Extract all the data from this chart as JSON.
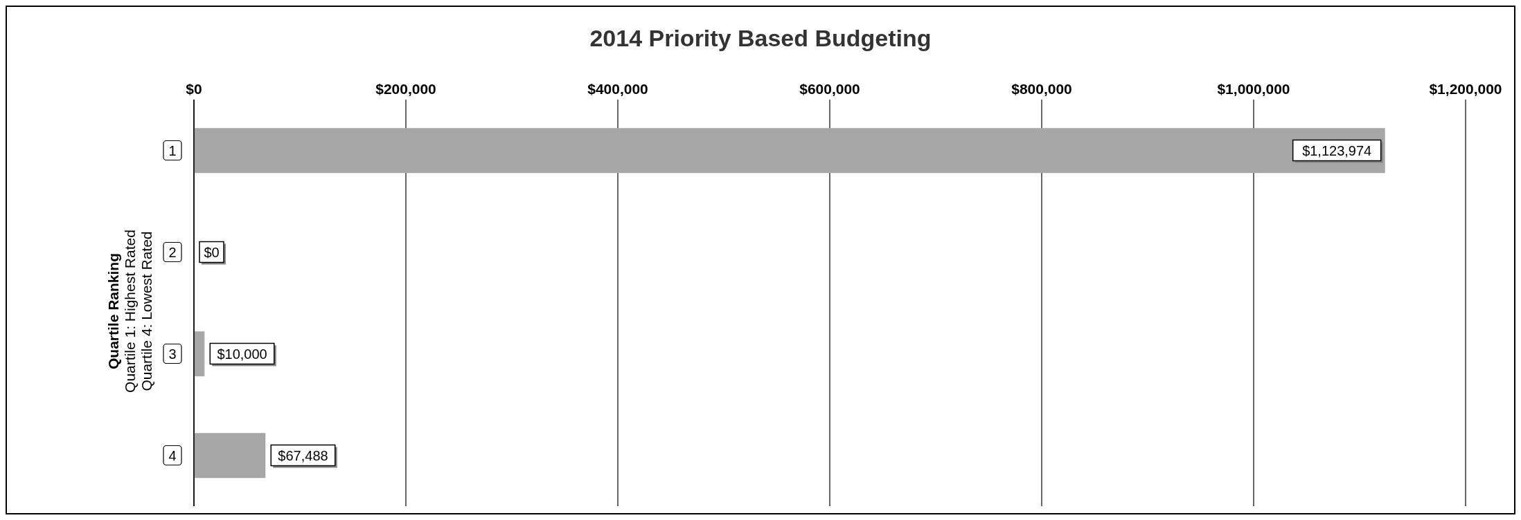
{
  "chart_data": {
    "type": "bar",
    "orientation": "horizontal",
    "title": "2014 Priority Based Budgeting",
    "ylabel": "Quartile Ranking\nQuartile 1: Highest Rated\nQuartile 4: Lowest Rated",
    "categories": [
      "1",
      "2",
      "3",
      "4"
    ],
    "values": [
      1123974,
      0,
      10000,
      67488
    ],
    "value_labels": [
      "$1,123,974",
      "$0",
      "$10,000",
      "$67,488"
    ],
    "color": "#a6a6a6",
    "xlim": [
      0,
      1200000
    ],
    "xticks": [
      {
        "value": 0,
        "label": "$0"
      },
      {
        "value": 200000,
        "label": "$200,000"
      },
      {
        "value": 400000,
        "label": "$400,000"
      },
      {
        "value": 600000,
        "label": "$600,000"
      },
      {
        "value": 800000,
        "label": "$800,000"
      },
      {
        "value": 1000000,
        "label": "$1,000,000"
      },
      {
        "value": 1200000,
        "label": "$1,200,000"
      }
    ],
    "grid": "x"
  }
}
